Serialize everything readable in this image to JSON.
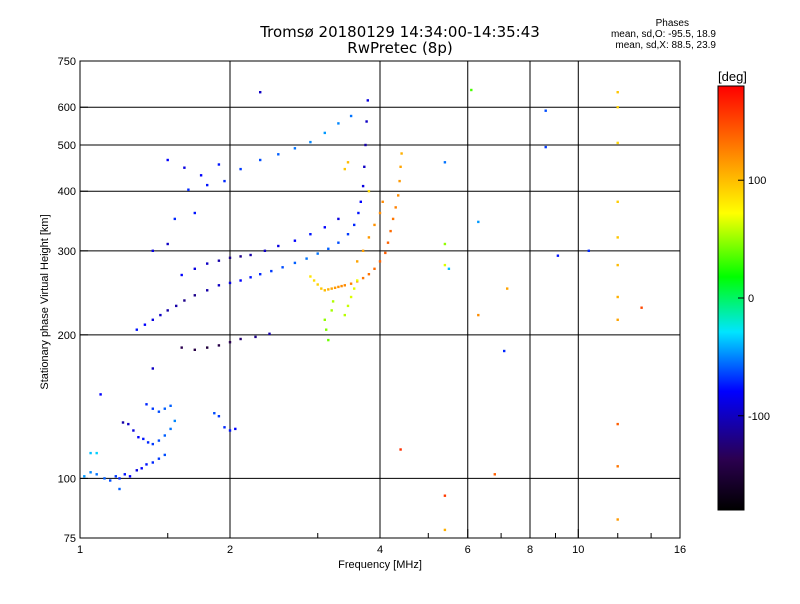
{
  "header": {
    "title_line1": "Tromsø 20180129 14:34:00-14:35:43",
    "title_line2": "RwPretec (8p)"
  },
  "phases": {
    "title": "Phases",
    "line_o": "mean, sd,O: -95.5, 18.9",
    "line_x": "mean, sd,X:  88.5, 23.9"
  },
  "colorbar": {
    "unit": "[deg]",
    "ticks": [
      {
        "label": "100",
        "value": 100
      },
      {
        "label": "0",
        "value": 0
      },
      {
        "label": "-100",
        "value": -100
      }
    ],
    "range": [
      -180,
      180
    ]
  },
  "chart_data": {
    "type": "scatter",
    "title": "Tromsø 20180129 14:34:00-14:35:43",
    "subtitle": "RwPretec (8p)",
    "xlabel": "Frequency [MHz]",
    "ylabel": "Stationary phase Virtual Height [km]",
    "xscale": "log",
    "yscale": "log",
    "xlim": [
      1,
      16
    ],
    "ylim": [
      75,
      750
    ],
    "x_ticks": [
      {
        "label": "1",
        "value": 1
      },
      {
        "label": "2",
        "value": 2
      },
      {
        "label": "4",
        "value": 4
      },
      {
        "label": "6",
        "value": 6
      },
      {
        "label": "8",
        "value": 8
      },
      {
        "label": "10",
        "value": 10
      },
      {
        "label": "16",
        "value": 16
      }
    ],
    "y_ticks": [
      {
        "label": "750",
        "value": 750
      },
      {
        "label": "600",
        "value": 600
      },
      {
        "label": "500",
        "value": 500
      },
      {
        "label": "400",
        "value": 400
      },
      {
        "label": "300",
        "value": 300
      },
      {
        "label": "200",
        "value": 200
      },
      {
        "label": "100",
        "value": 100
      },
      {
        "label": "75",
        "value": 75
      }
    ],
    "grid": true,
    "color_meaning": "phase [deg]",
    "series": [
      {
        "name": "o-mode",
        "points": [
          [
            1.02,
            101,
            -70
          ],
          [
            1.05,
            103,
            -75
          ],
          [
            1.08,
            102,
            -80
          ],
          [
            1.12,
            100,
            -85
          ],
          [
            1.15,
            99,
            -90
          ],
          [
            1.18,
            101,
            -95
          ],
          [
            1.2,
            100,
            -100
          ],
          [
            1.23,
            102,
            -105
          ],
          [
            1.26,
            101,
            -110
          ],
          [
            1.3,
            104,
            -115
          ],
          [
            1.33,
            105,
            -110
          ],
          [
            1.36,
            107,
            -105
          ],
          [
            1.4,
            108,
            -100
          ],
          [
            1.44,
            110,
            -95
          ],
          [
            1.48,
            112,
            -90
          ],
          [
            1.05,
            113,
            -60
          ],
          [
            1.08,
            113,
            -55
          ],
          [
            1.1,
            150,
            -110
          ],
          [
            1.22,
            131,
            -125
          ],
          [
            1.25,
            130,
            -120
          ],
          [
            1.28,
            126,
            -115
          ],
          [
            1.31,
            122,
            -110
          ],
          [
            1.34,
            121,
            -105
          ],
          [
            1.37,
            119,
            -100
          ],
          [
            1.4,
            118,
            -95
          ],
          [
            1.44,
            120,
            -90
          ],
          [
            1.48,
            123,
            -85
          ],
          [
            1.52,
            127,
            -80
          ],
          [
            1.55,
            132,
            -75
          ],
          [
            1.36,
            143,
            -100
          ],
          [
            1.4,
            140,
            -95
          ],
          [
            1.44,
            138,
            -90
          ],
          [
            1.48,
            140,
            -85
          ],
          [
            1.52,
            142,
            -85
          ],
          [
            1.86,
            137,
            -90
          ],
          [
            1.9,
            135,
            -95
          ],
          [
            1.95,
            128,
            -100
          ],
          [
            2.0,
            126,
            -105
          ],
          [
            2.05,
            127,
            -110
          ],
          [
            1.3,
            205,
            -105
          ],
          [
            1.35,
            210,
            -110
          ],
          [
            1.4,
            215,
            -115
          ],
          [
            1.45,
            220,
            -120
          ],
          [
            1.5,
            225,
            -125
          ],
          [
            1.56,
            230,
            -125
          ],
          [
            1.62,
            236,
            -130
          ],
          [
            1.7,
            242,
            -130
          ],
          [
            1.8,
            248,
            -125
          ],
          [
            1.9,
            254,
            -120
          ],
          [
            2.0,
            257,
            -115
          ],
          [
            2.1,
            260,
            -110
          ],
          [
            2.2,
            264,
            -105
          ],
          [
            2.3,
            268,
            -100
          ],
          [
            2.42,
            272,
            -95
          ],
          [
            2.55,
            277,
            -90
          ],
          [
            2.7,
            283,
            -85
          ],
          [
            2.85,
            289,
            -80
          ],
          [
            3.0,
            296,
            -80
          ],
          [
            3.15,
            303,
            -85
          ],
          [
            3.3,
            312,
            -90
          ],
          [
            3.45,
            325,
            -95
          ],
          [
            3.55,
            340,
            -100
          ],
          [
            3.62,
            360,
            -105
          ],
          [
            3.66,
            380,
            -110
          ],
          [
            3.7,
            410,
            -115
          ],
          [
            3.72,
            450,
            -120
          ],
          [
            3.74,
            500,
            -125
          ],
          [
            3.76,
            560,
            -120
          ],
          [
            3.78,
            620,
            -115
          ],
          [
            1.6,
            267,
            -110
          ],
          [
            1.7,
            275,
            -115
          ],
          [
            1.8,
            282,
            -120
          ],
          [
            1.9,
            286,
            -125
          ],
          [
            2.0,
            290,
            -130
          ],
          [
            2.1,
            292,
            -130
          ],
          [
            2.2,
            294,
            -125
          ],
          [
            2.35,
            300,
            -120
          ],
          [
            2.5,
            307,
            -115
          ],
          [
            2.7,
            315,
            -110
          ],
          [
            2.9,
            325,
            -105
          ],
          [
            3.1,
            336,
            -110
          ],
          [
            3.3,
            350,
            -115
          ],
          [
            1.6,
            188,
            -140
          ],
          [
            1.7,
            186,
            -145
          ],
          [
            1.8,
            188,
            -150
          ],
          [
            1.9,
            190,
            -145
          ],
          [
            2.0,
            193,
            -140
          ],
          [
            2.1,
            196,
            -135
          ],
          [
            2.25,
            198,
            -130
          ],
          [
            2.4,
            201,
            -125
          ],
          [
            1.65,
            403,
            -100
          ],
          [
            1.8,
            412,
            -105
          ],
          [
            1.95,
            420,
            -100
          ],
          [
            2.1,
            445,
            -95
          ],
          [
            2.3,
            465,
            -90
          ],
          [
            2.5,
            478,
            -85
          ],
          [
            2.7,
            492,
            -80
          ],
          [
            2.9,
            507,
            -75
          ],
          [
            3.1,
            530,
            -70
          ],
          [
            3.3,
            555,
            -75
          ],
          [
            3.5,
            575,
            -80
          ],
          [
            1.5,
            465,
            -110
          ],
          [
            1.62,
            448,
            -115
          ],
          [
            1.75,
            432,
            -110
          ],
          [
            1.9,
            455,
            -105
          ],
          [
            2.3,
            645,
            -120
          ],
          [
            1.4,
            300,
            -115
          ],
          [
            1.5,
            310,
            -120
          ],
          [
            1.55,
            350,
            -100
          ],
          [
            1.7,
            360,
            -105
          ],
          [
            5.4,
            460,
            -80
          ],
          [
            6.3,
            345,
            -70
          ],
          [
            7.1,
            185,
            -100
          ],
          [
            8.6,
            590,
            -90
          ],
          [
            8.6,
            495,
            -95
          ],
          [
            9.1,
            293,
            -105
          ],
          [
            10.5,
            300,
            -100
          ],
          [
            5.5,
            275,
            -60
          ],
          [
            1.4,
            170,
            -120
          ],
          [
            1.2,
            95,
            -85
          ]
        ]
      },
      {
        "name": "x-mode",
        "points": [
          [
            3.05,
            250,
            95
          ],
          [
            3.1,
            248,
            100
          ],
          [
            3.15,
            249,
            105
          ],
          [
            3.2,
            250,
            110
          ],
          [
            3.25,
            251,
            115
          ],
          [
            3.3,
            252,
            118
          ],
          [
            3.35,
            253,
            120
          ],
          [
            3.4,
            254,
            122
          ],
          [
            3.5,
            256,
            125
          ],
          [
            3.6,
            259,
            128
          ],
          [
            3.7,
            263,
            130
          ],
          [
            3.8,
            268,
            132
          ],
          [
            3.9,
            275,
            135
          ],
          [
            4.0,
            285,
            138
          ],
          [
            4.1,
            297,
            140
          ],
          [
            4.15,
            312,
            138
          ],
          [
            4.2,
            330,
            135
          ],
          [
            4.25,
            350,
            130
          ],
          [
            4.3,
            370,
            125
          ],
          [
            4.35,
            392,
            120
          ],
          [
            4.38,
            420,
            115
          ],
          [
            4.4,
            450,
            110
          ],
          [
            4.42,
            480,
            105
          ],
          [
            3.6,
            285,
            110
          ],
          [
            3.7,
            300,
            112
          ],
          [
            3.8,
            320,
            115
          ],
          [
            3.9,
            340,
            118
          ],
          [
            4.0,
            360,
            120
          ],
          [
            4.05,
            380,
            122
          ],
          [
            3.4,
            220,
            50
          ],
          [
            3.45,
            230,
            55
          ],
          [
            3.5,
            240,
            60
          ],
          [
            3.55,
            250,
            62
          ],
          [
            3.6,
            260,
            65
          ],
          [
            3.1,
            215,
            40
          ],
          [
            3.12,
            205,
            35
          ],
          [
            3.15,
            195,
            30
          ],
          [
            3.2,
            225,
            45
          ],
          [
            3.22,
            235,
            48
          ],
          [
            3.4,
            445,
            95
          ],
          [
            3.45,
            460,
            100
          ],
          [
            3.8,
            400,
            85
          ],
          [
            4.4,
            115,
            160
          ],
          [
            3.0,
            255,
            90
          ],
          [
            2.95,
            260,
            85
          ],
          [
            2.9,
            265,
            82
          ],
          [
            5.4,
            78,
            105
          ],
          [
            5.4,
            92,
            155
          ],
          [
            6.1,
            652,
            20
          ],
          [
            6.3,
            220,
            120
          ],
          [
            7.2,
            250,
            110
          ],
          [
            6.8,
            102,
            140
          ],
          [
            5.4,
            280,
            60
          ],
          [
            12.0,
            645,
            95
          ],
          [
            12.0,
            600,
            90
          ],
          [
            12.0,
            505,
            88
          ],
          [
            12.0,
            380,
            92
          ],
          [
            12.0,
            320,
            95
          ],
          [
            12.0,
            280,
            100
          ],
          [
            12.0,
            240,
            105
          ],
          [
            12.0,
            215,
            110
          ],
          [
            12.0,
            130,
            140
          ],
          [
            12.0,
            106,
            130
          ],
          [
            12.0,
            82,
            115
          ],
          [
            13.4,
            228,
            150
          ],
          [
            5.4,
            310,
            40
          ]
        ]
      }
    ]
  }
}
